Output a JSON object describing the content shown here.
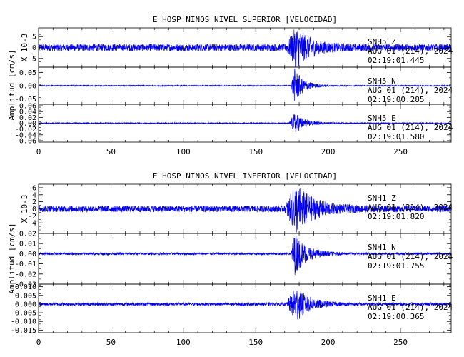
{
  "theme": {
    "background": "#ffffff",
    "ink": "#000000",
    "trace": "#0000ee"
  },
  "chart_data": [
    {
      "type": "line",
      "title": "E HOSP NINOS NIVEL SUPERIOR [VELOCIDAD]",
      "ylabel": "Amplitud [cm/s]",
      "xlim": [
        0,
        285
      ],
      "xticks": [
        0,
        50,
        100,
        150,
        200,
        250
      ],
      "grid": false,
      "panels": [
        {
          "station": "SNH5",
          "component": "Z",
          "multiplier": "X 10-3",
          "date": "AUG 01 (214), 2024",
          "time": "02:19:01.445",
          "ylim": [
            -9,
            9
          ],
          "yticks": [
            -5,
            0,
            5
          ],
          "ytick_labels": [
            "-5",
            "0",
            "5"
          ],
          "noise_amp": 1.6,
          "event_peak": 8.5,
          "event_onset": 171,
          "event_max_at": 178,
          "event_decay": 10
        },
        {
          "station": "SNH5",
          "component": "N",
          "multiplier": "",
          "date": "AUG 01 (214), 2024",
          "time": "02:19:00.285",
          "ylim": [
            -0.07,
            0.07
          ],
          "yticks": [
            -0.05,
            0,
            0.05
          ],
          "ytick_labels": [
            "-0.05",
            "0.00",
            "0.05"
          ],
          "noise_amp": 0.002,
          "event_peak": 0.065,
          "event_onset": 174,
          "event_max_at": 177,
          "event_decay": 6
        },
        {
          "station": "SNH5",
          "component": "E",
          "multiplier": "",
          "date": "AUG 01 (214), 2024",
          "time": "02:19:01.580",
          "ylim": [
            -0.065,
            0.065
          ],
          "yticks": [
            -0.06,
            -0.04,
            -0.02,
            0,
            0.02,
            0.04,
            0.06
          ],
          "ytick_labels": [
            "-0.06",
            "-0.04",
            "-0.02",
            "0.00",
            "0.02",
            "0.04",
            "0.06"
          ],
          "noise_amp": 0.002,
          "event_peak": 0.035,
          "event_onset": 173,
          "event_max_at": 177,
          "event_decay": 7
        }
      ]
    },
    {
      "type": "line",
      "title": "E HOSP NINOS NIVEL INFERIOR [VELOCIDAD]",
      "ylabel": "Amplitud [cm/s]",
      "xlim": [
        0,
        285
      ],
      "xticks": [
        0,
        50,
        100,
        150,
        200,
        250
      ],
      "grid": false,
      "panels": [
        {
          "station": "SNH1",
          "component": "Z",
          "multiplier": "X 10-3",
          "date": "AUG 01 (214), 2024",
          "time": "02:19:01.820",
          "ylim": [
            -7,
            7
          ],
          "yticks": [
            -4,
            -2,
            0,
            2,
            4,
            6
          ],
          "ytick_labels": [
            "-4",
            "-2",
            "0",
            "2",
            "4",
            "6"
          ],
          "noise_amp": 0.9,
          "event_peak": 6.5,
          "event_onset": 170,
          "event_max_at": 178,
          "event_decay": 12
        },
        {
          "station": "SNH1",
          "component": "N",
          "multiplier": "",
          "date": "AUG 01 (214), 2024",
          "time": "02:19:01.755",
          "ylim": [
            -0.03,
            0.02
          ],
          "yticks": [
            -0.03,
            -0.02,
            -0.01,
            0,
            0.01,
            0.02
          ],
          "ytick_labels": [
            "-0.03",
            "-0.02",
            "-0.01",
            "0.00",
            "0.01",
            "0.02"
          ],
          "noise_amp": 0.0012,
          "event_peak": 0.02,
          "event_onset": 174,
          "event_max_at": 177,
          "event_decay": 8
        },
        {
          "station": "SNH1",
          "component": "E",
          "multiplier": "",
          "date": "AUG 01 (214), 2024",
          "time": "02:19:00.365",
          "ylim": [
            -0.0165,
            0.0115
          ],
          "yticks": [
            -0.015,
            -0.01,
            -0.005,
            0,
            0.005,
            0.01
          ],
          "ytick_labels": [
            "-0.015",
            "-0.010",
            "-0.005",
            "0.000",
            "0.005",
            "0.010"
          ],
          "noise_amp": 0.0009,
          "event_peak": 0.01,
          "event_onset": 171,
          "event_max_at": 178,
          "event_decay": 9
        }
      ]
    }
  ]
}
